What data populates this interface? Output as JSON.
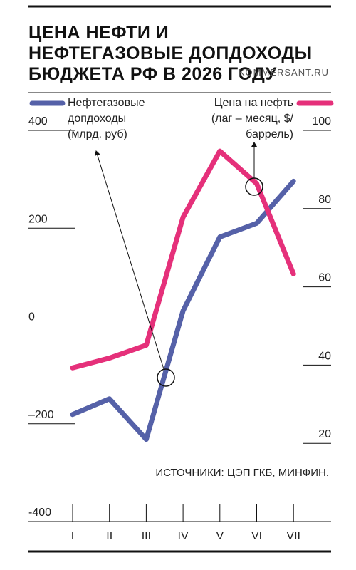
{
  "chart_data": {
    "type": "line",
    "title": "ЦЕНА НЕФТИ И НЕФТЕГАЗОВЫЕ ДОПДОХОДЫ БЮДЖЕТА РФ В 2026 ГОДУ",
    "source_brand": "KOMMERSANT.RU",
    "note": "ИСТОЧНИКИ: ЦЭП ГКБ, МИНФИН.",
    "categories": [
      "I",
      "II",
      "III",
      "IV",
      "V",
      "VI",
      "VII"
    ],
    "series": [
      {
        "name": "Нефтегазовые допдоходы (млрд. руб)",
        "color": "#5561a8",
        "axis": "y",
        "values": [
          -181,
          -149,
          -232,
          31,
          182,
          210,
          296
        ]
      },
      {
        "name": "Цена на нефть (лаг – месяц, $/баррель)",
        "color": "#e5307a",
        "axis": "y2",
        "values": [
          39.3,
          41.8,
          45.1,
          77.8,
          94.7,
          86.4,
          63.3
        ]
      }
    ],
    "ylim": [
      -400,
      400
    ],
    "yticks": [
      {
        "value": -400,
        "label": "-400"
      },
      {
        "value": -200,
        "label": "–200"
      },
      0,
      200,
      400
    ],
    "y2lim": [
      0,
      100
    ],
    "y2ticks": [
      20,
      40,
      60,
      80,
      100
    ]
  }
}
